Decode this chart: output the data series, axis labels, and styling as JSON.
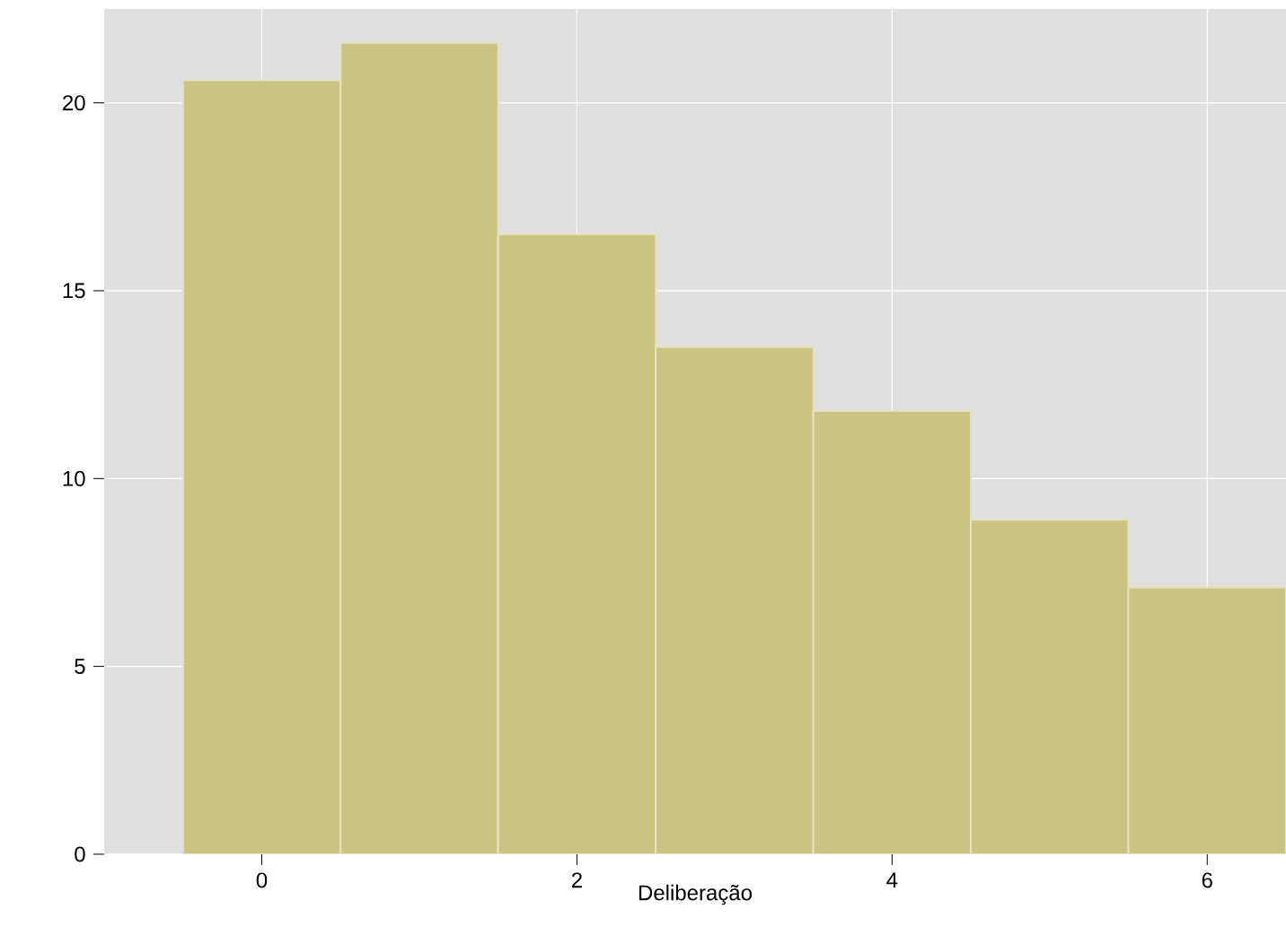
{
  "chart_data": {
    "type": "histogram",
    "xlabel": "Deliberação",
    "bins": [
      -0.5,
      0.5,
      1.5,
      2.5,
      3.5,
      4.5,
      5.5,
      6.5
    ],
    "values": [
      20.6,
      21.6,
      16.5,
      13.5,
      11.8,
      8.9,
      7.1
    ],
    "color": "#cbc382",
    "xlim": [
      -1,
      6.5
    ],
    "ylim": [
      0,
      22.5
    ],
    "xticks": [
      0,
      2,
      4,
      6
    ],
    "yticks": [
      0,
      5,
      10,
      15,
      20
    ],
    "grid": true
  }
}
